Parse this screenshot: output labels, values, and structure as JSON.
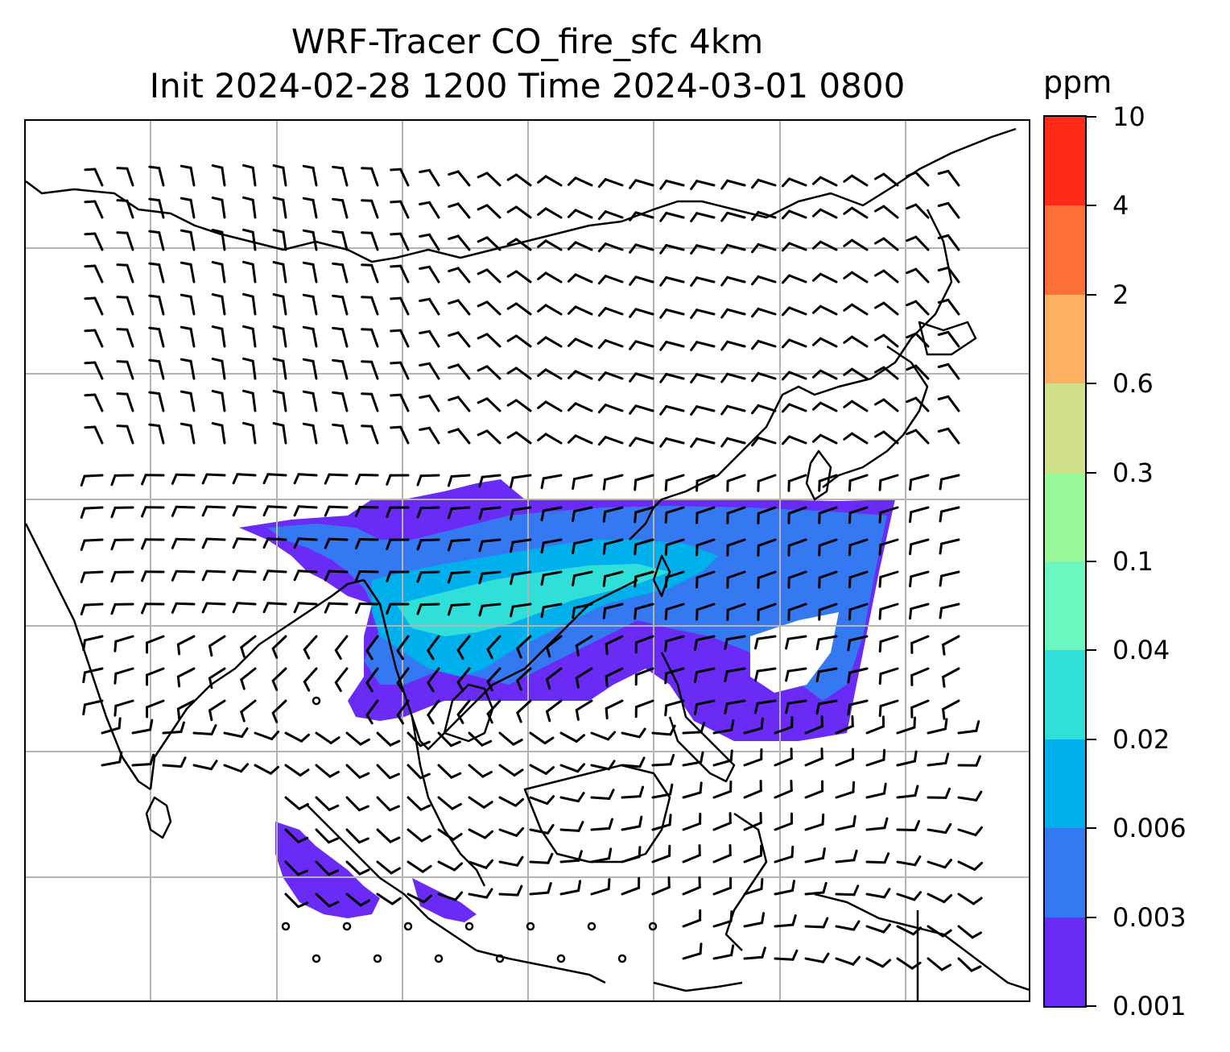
{
  "title": {
    "line1": "WRF-Tracer CO_fire_sfc 4km",
    "line2": "Init 2024-02-28 1200 Time 2024-03-01 0800"
  },
  "colorbar": {
    "units": "ppm",
    "levels": [
      "0.001",
      "0.003",
      "0.006",
      "0.02",
      "0.04",
      "0.1",
      "0.3",
      "0.6",
      "2",
      "4",
      "10"
    ],
    "colors": [
      "#6a2bf6",
      "#3478f2",
      "#00b0ec",
      "#30e0d8",
      "#6af7c0",
      "#98f798",
      "#d0e08a",
      "#fcb061",
      "#ff7038",
      "#ff2a17"
    ]
  },
  "map": {
    "gridlines": "on",
    "coastlines": "on",
    "wind_barbs": "on",
    "field_colors": {
      "plume_outer": "#6a2bf6",
      "plume_mid": "#3478f2",
      "plume_inner": "#00b0ec",
      "plume_core": "#30e0d8",
      "coastline": "#000000",
      "grid": "#b4b4b4"
    }
  }
}
